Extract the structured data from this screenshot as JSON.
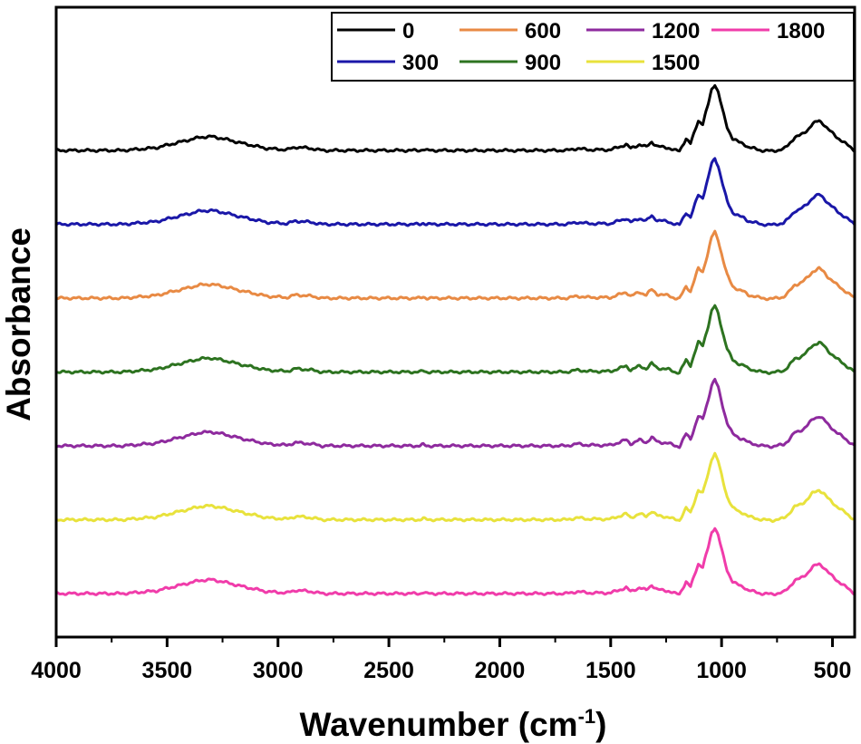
{
  "chart_data": {
    "type": "line",
    "title": "",
    "xlabel": "Wavenumber (cm",
    "xlabel_superscript": "-1",
    "xlabel_suffix": ")",
    "ylabel": "Absorbance",
    "xlim": [
      4000,
      400
    ],
    "x_reversed": true,
    "xticks": [
      4000,
      3500,
      3000,
      2500,
      2000,
      1500,
      1000,
      500
    ],
    "xtick_labels": [
      "4000",
      "3500",
      "3000",
      "2500",
      "2000",
      "1500",
      "1000",
      "500"
    ],
    "y_ticks_shown": false,
    "grid": false,
    "legend_position": "top-right",
    "series": [
      {
        "name": "0",
        "color": "#000000",
        "offset": 6
      },
      {
        "name": "300",
        "color": "#1a17a8",
        "offset": 5
      },
      {
        "name": "600",
        "color": "#e88a44",
        "offset": 4
      },
      {
        "name": "900",
        "color": "#2d7320",
        "offset": 3
      },
      {
        "name": "1200",
        "color": "#8e2a9e",
        "offset": 2
      },
      {
        "name": "1500",
        "color": "#e8e23c",
        "offset": 1
      },
      {
        "name": "1800",
        "color": "#f03caa",
        "offset": 0
      }
    ],
    "peak_profile_units": "wavenumber (cm-1) vs relative absorbance 0-1",
    "peak_profile": [
      [
        4000,
        0.0
      ],
      [
        3700,
        0.0
      ],
      [
        3550,
        0.04
      ],
      [
        3450,
        0.12
      ],
      [
        3350,
        0.2
      ],
      [
        3300,
        0.21
      ],
      [
        3250,
        0.18
      ],
      [
        3150,
        0.1
      ],
      [
        3050,
        0.03
      ],
      [
        2960,
        0.01
      ],
      [
        2920,
        0.05
      ],
      [
        2880,
        0.04
      ],
      [
        2850,
        0.03
      ],
      [
        2800,
        0.0
      ],
      [
        2360,
        0.0
      ],
      [
        2345,
        0.02
      ],
      [
        2330,
        0.0
      ],
      [
        1700,
        0.0
      ],
      [
        1650,
        0.03
      ],
      [
        1600,
        0.01
      ],
      [
        1500,
        0.01
      ],
      [
        1430,
        0.09
      ],
      [
        1410,
        0.03
      ],
      [
        1370,
        0.09
      ],
      [
        1340,
        0.05
      ],
      [
        1315,
        0.13
      ],
      [
        1290,
        0.06
      ],
      [
        1240,
        0.04
      ],
      [
        1210,
        0.0
      ],
      [
        1190,
        -0.01
      ],
      [
        1160,
        0.18
      ],
      [
        1140,
        0.1
      ],
      [
        1105,
        0.45
      ],
      [
        1085,
        0.4
      ],
      [
        1060,
        0.7
      ],
      [
        1045,
        0.92
      ],
      [
        1030,
        1.0
      ],
      [
        1015,
        0.88
      ],
      [
        995,
        0.6
      ],
      [
        975,
        0.35
      ],
      [
        950,
        0.18
      ],
      [
        920,
        0.12
      ],
      [
        900,
        0.1
      ],
      [
        880,
        0.05
      ],
      [
        820,
        0.0
      ],
      [
        770,
        -0.01
      ],
      [
        720,
        0.02
      ],
      [
        700,
        0.08
      ],
      [
        670,
        0.2
      ],
      [
        650,
        0.22
      ],
      [
        630,
        0.26
      ],
      [
        610,
        0.32
      ],
      [
        590,
        0.4
      ],
      [
        560,
        0.45
      ],
      [
        540,
        0.4
      ],
      [
        520,
        0.32
      ],
      [
        480,
        0.2
      ],
      [
        440,
        0.1
      ],
      [
        400,
        0.0
      ]
    ]
  }
}
